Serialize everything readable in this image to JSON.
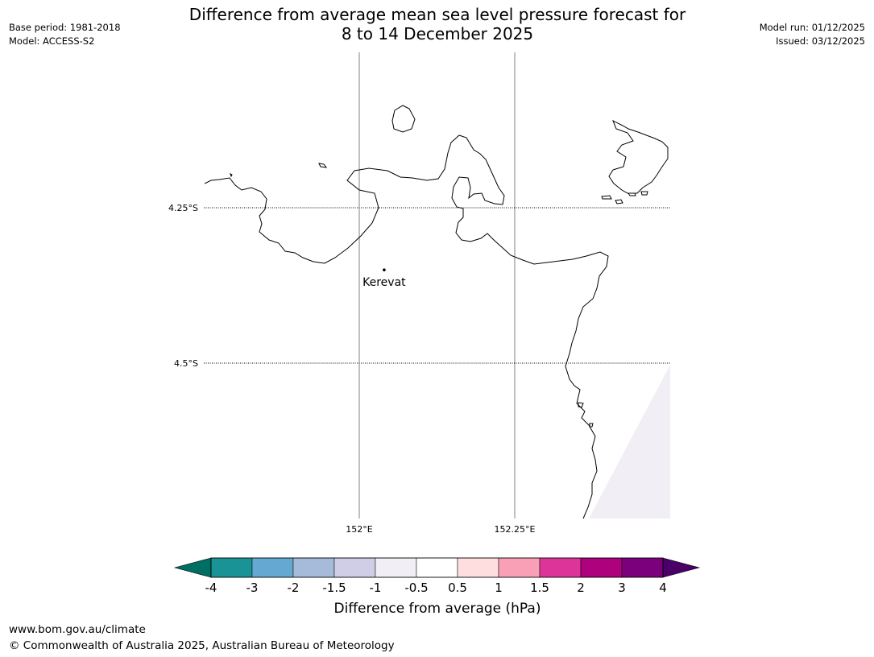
{
  "title": {
    "line1": "Difference from average mean sea level pressure forecast for",
    "line2": "8 to 14 December 2025"
  },
  "header_left": {
    "base_period": "Base period: 1981-2018",
    "model": "Model: ACCESS-S2"
  },
  "header_right": {
    "model_run": "Model run: 01/12/2025",
    "issued": "Issued: 03/12/2025"
  },
  "map": {
    "latitude_labels": [
      "4.25°S",
      "4.5°S"
    ],
    "longitude_labels": [
      "152°E",
      "152.25°E"
    ],
    "place": {
      "name": "Kerevat",
      "lon": 152.04,
      "lat": -4.35
    },
    "shaded_anomaly_color": "#f2eef6",
    "coastline_color": "#000000",
    "gridline_color": "#808080"
  },
  "colorbar": {
    "label": "Difference from average (hPa)",
    "ticks": [
      "-4",
      "-3",
      "-2",
      "-1.5",
      "-1",
      "-0.5",
      "0.5",
      "1",
      "1.5",
      "2",
      "3",
      "4"
    ],
    "under_color": "#006e63",
    "over_color": "#4b0068",
    "colors": [
      "#1a9396",
      "#65a8d1",
      "#a6bbda",
      "#d0cee6",
      "#f2eef6",
      "#ffffff",
      "#ffdedf",
      "#f9a0b6",
      "#dd349a",
      "#ad017e",
      "#7b007b"
    ]
  },
  "footer": {
    "url": "www.bom.gov.au/climate",
    "copyright": "© Commonwealth of Australia 2025, Australian Bureau of Meteorology"
  }
}
